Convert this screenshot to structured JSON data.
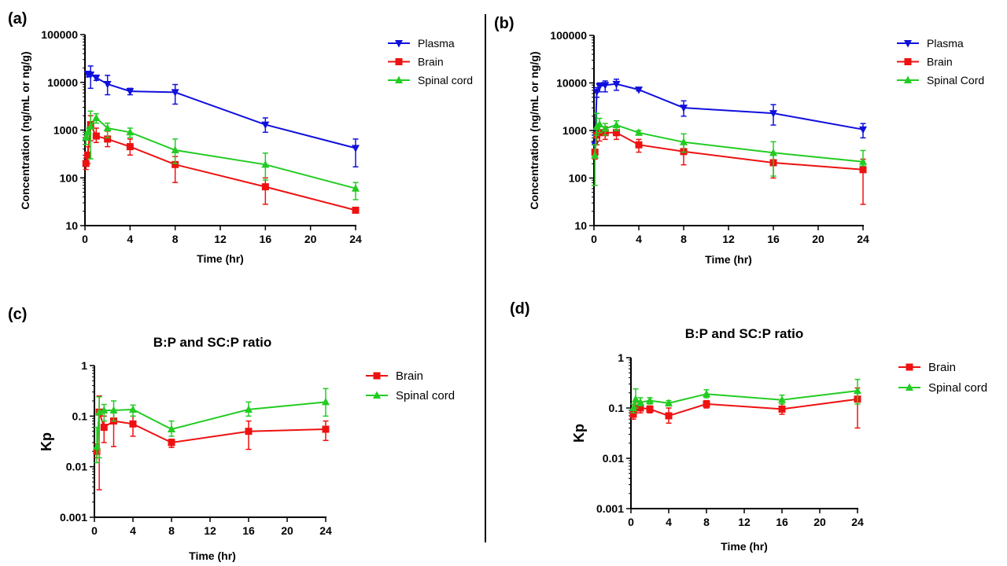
{
  "colors": {
    "plasma": "#1010dd",
    "brain": "#ee1111",
    "spinal": "#22cc22",
    "axis": "#000000"
  },
  "chart_data": [
    {
      "panel": "(a)",
      "type": "line",
      "ylabel": "Concentration (ng/mL or ng/g)",
      "xlabel": "Time (hr)",
      "yscale": "log",
      "ylim": [
        10,
        100000
      ],
      "xlim": [
        0,
        24
      ],
      "xticks": [
        0,
        4,
        8,
        12,
        16,
        20,
        24
      ],
      "yticks": [
        10,
        100,
        1000,
        10000,
        100000
      ],
      "legend_position": "top-right",
      "series": [
        {
          "name": "Plasma",
          "color_key": "plasma",
          "marker": "triangle-down",
          "x": [
            0.25,
            0.5,
            1,
            2,
            4,
            8,
            16,
            24
          ],
          "y": [
            15000,
            14500,
            12500,
            9200,
            6500,
            6200,
            1300,
            420
          ],
          "err": [
            [
              13000,
              17000
            ],
            [
              7500,
              22000
            ],
            [
              11000,
              14000
            ],
            [
              5500,
              14000
            ],
            [
              5500,
              7500
            ],
            [
              3500,
              9000
            ],
            [
              900,
              1800
            ],
            [
              170,
              650
            ]
          ]
        },
        {
          "name": "Brain",
          "color_key": "brain",
          "marker": "square",
          "x": [
            0.083,
            0.25,
            0.5,
            1,
            2,
            4,
            8,
            16,
            24
          ],
          "y": [
            200,
            300,
            1300,
            750,
            650,
            450,
            190,
            65,
            21
          ],
          "err": [
            [
              150,
              260
            ],
            [
              200,
              450
            ],
            [
              600,
              2000
            ],
            [
              550,
              1100
            ],
            [
              450,
              950
            ],
            [
              300,
              650
            ],
            [
              80,
              280
            ],
            [
              28,
              100
            ],
            [
              19,
              23
            ]
          ]
        },
        {
          "name": "Spinal cord",
          "color_key": "spinal",
          "marker": "triangle-up",
          "x": [
            0.083,
            0.25,
            0.5,
            1,
            2,
            4,
            8,
            16,
            24
          ],
          "y": [
            700,
            900,
            1200,
            1800,
            1100,
            900,
            380,
            190,
            60
          ],
          "err": [
            [
              500,
              900
            ],
            [
              700,
              1100
            ],
            [
              250,
              2500
            ],
            [
              1400,
              2200
            ],
            [
              700,
              1400
            ],
            [
              700,
              1100
            ],
            [
              200,
              650
            ],
            [
              90,
              330
            ],
            [
              35,
              80
            ]
          ]
        }
      ]
    },
    {
      "panel": "(b)",
      "type": "line",
      "ylabel": "Concentration (ng/mL or ng/g)",
      "xlabel": "Time (hr)",
      "yscale": "log",
      "ylim": [
        10,
        100000
      ],
      "xlim": [
        0,
        24
      ],
      "xticks": [
        0,
        4,
        8,
        12,
        16,
        20,
        24
      ],
      "yticks": [
        10,
        100,
        1000,
        10000,
        100000
      ],
      "legend_position": "top-right",
      "series": [
        {
          "name": "Plasma",
          "color_key": "plasma",
          "marker": "triangle-down",
          "x": [
            0.083,
            0.25,
            0.5,
            1,
            2,
            4,
            8,
            16,
            24
          ],
          "y": [
            500,
            6500,
            8500,
            9000,
            9500,
            7200,
            3000,
            2300,
            1050
          ],
          "err": [
            [
              300,
              800
            ],
            [
              5000,
              8000
            ],
            [
              6500,
              10000
            ],
            [
              6500,
              11000
            ],
            [
              7000,
              12000
            ],
            [
              6800,
              7800
            ],
            [
              2000,
              4200
            ],
            [
              1300,
              3500
            ],
            [
              700,
              1400
            ]
          ]
        },
        {
          "name": "Brain",
          "color_key": "brain",
          "marker": "square",
          "x": [
            0.083,
            0.25,
            0.5,
            1,
            2,
            4,
            8,
            16,
            24
          ],
          "y": [
            350,
            800,
            900,
            900,
            900,
            500,
            360,
            210,
            150
          ],
          "err": [
            [
              250,
              500
            ],
            [
              500,
              1100
            ],
            [
              600,
              1300
            ],
            [
              650,
              1200
            ],
            [
              650,
              1200
            ],
            [
              350,
              650
            ],
            [
              190,
              520
            ],
            [
              100,
              320
            ],
            [
              28,
              250
            ]
          ]
        },
        {
          "name": "Spinal Cord",
          "color_key": "spinal",
          "marker": "triangle-up",
          "x": [
            0.083,
            0.25,
            0.5,
            1,
            2,
            4,
            8,
            16,
            24
          ],
          "y": [
            300,
            1200,
            1350,
            1100,
            1300,
            900,
            570,
            340,
            220
          ],
          "err": [
            [
              70,
              500
            ],
            [
              800,
              2300
            ],
            [
              900,
              1800
            ],
            [
              800,
              1400
            ],
            [
              1000,
              1600
            ],
            [
              800,
              1000
            ],
            [
              350,
              850
            ],
            [
              110,
              580
            ],
            [
              180,
              380
            ]
          ]
        }
      ]
    },
    {
      "panel": "(c)",
      "type": "line",
      "title": "B:P and SC:P ratio",
      "ylabel": "Kp",
      "xlabel": "Time (hr)",
      "yscale": "log",
      "ylim": [
        0.001,
        1
      ],
      "xlim": [
        0,
        24
      ],
      "xticks": [
        0,
        4,
        8,
        12,
        16,
        20,
        24
      ],
      "yticks": [
        0.001,
        0.01,
        0.1,
        1
      ],
      "legend_position": "top-right",
      "series": [
        {
          "name": "Brain",
          "color_key": "brain",
          "marker": "square",
          "x": [
            0.25,
            0.5,
            1,
            2,
            4,
            8,
            16,
            24
          ],
          "y": [
            0.02,
            0.12,
            0.06,
            0.08,
            0.07,
            0.03,
            0.05,
            0.055
          ],
          "err": [
            [
              0.015,
              0.028
            ],
            [
              0.0035,
              0.25
            ],
            [
              0.03,
              0.1
            ],
            [
              0.025,
              0.13
            ],
            [
              0.04,
              0.1
            ],
            [
              0.024,
              0.035
            ],
            [
              0.022,
              0.08
            ],
            [
              0.033,
              0.08
            ]
          ]
        },
        {
          "name": "Spinal cord",
          "color_key": "spinal",
          "marker": "triangle-up",
          "x": [
            0.25,
            0.5,
            1,
            2,
            4,
            8,
            16,
            24
          ],
          "y": [
            0.025,
            0.12,
            0.13,
            0.13,
            0.135,
            0.055,
            0.135,
            0.19
          ],
          "err": [
            [
              0.012,
              0.06
            ],
            [
              0.015,
              0.24
            ],
            [
              0.08,
              0.17
            ],
            [
              0.08,
              0.2
            ],
            [
              0.1,
              0.165
            ],
            [
              0.04,
              0.08
            ],
            [
              0.1,
              0.19
            ],
            [
              0.1,
              0.35
            ]
          ]
        }
      ]
    },
    {
      "panel": "(d)",
      "type": "line",
      "title": "B:P and SC:P ratio",
      "ylabel": "Kp",
      "xlabel": "Time (hr)",
      "yscale": "log",
      "ylim": [
        0.001,
        1
      ],
      "xlim": [
        0,
        24
      ],
      "xticks": [
        0,
        4,
        8,
        12,
        16,
        20,
        24
      ],
      "yticks": [
        0.001,
        0.01,
        0.1,
        1
      ],
      "legend_position": "top-right",
      "series": [
        {
          "name": "Brain",
          "color_key": "brain",
          "marker": "square",
          "x": [
            0.25,
            0.5,
            1,
            2,
            4,
            8,
            16,
            24
          ],
          "y": [
            0.075,
            0.1,
            0.1,
            0.095,
            0.07,
            0.12,
            0.095,
            0.15
          ],
          "err": [
            [
              0.06,
              0.09
            ],
            [
              0.08,
              0.13
            ],
            [
              0.08,
              0.12
            ],
            [
              0.08,
              0.11
            ],
            [
              0.05,
              0.1
            ],
            [
              0.1,
              0.14
            ],
            [
              0.075,
              0.12
            ],
            [
              0.04,
              0.25
            ]
          ]
        },
        {
          "name": "Spinal cord",
          "color_key": "spinal",
          "marker": "triangle-up",
          "x": [
            0.25,
            0.5,
            1,
            2,
            4,
            8,
            16,
            24
          ],
          "y": [
            0.1,
            0.15,
            0.13,
            0.14,
            0.125,
            0.19,
            0.145,
            0.22
          ],
          "err": [
            [
              0.08,
              0.12
            ],
            [
              0.1,
              0.24
            ],
            [
              0.11,
              0.16
            ],
            [
              0.12,
              0.16
            ],
            [
              0.11,
              0.14
            ],
            [
              0.16,
              0.23
            ],
            [
              0.12,
              0.18
            ],
            [
              0.12,
              0.37
            ]
          ]
        }
      ]
    }
  ]
}
